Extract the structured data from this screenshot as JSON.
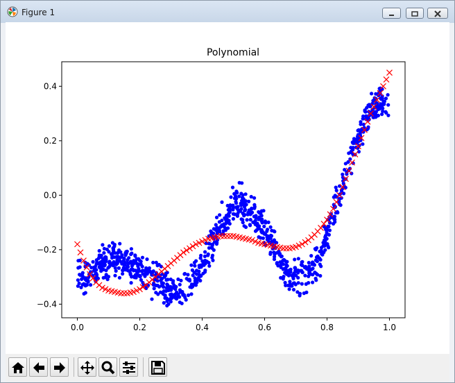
{
  "window": {
    "title": "Figure 1"
  },
  "toolbar": {
    "buttons": [
      {
        "name": "home",
        "icon": "home-icon"
      },
      {
        "name": "back",
        "icon": "arrow-left-icon"
      },
      {
        "name": "forward",
        "icon": "arrow-right-icon"
      },
      {
        "name": "pan",
        "icon": "move-arrows-icon"
      },
      {
        "name": "zoom",
        "icon": "magnifier-icon"
      },
      {
        "name": "configure-subplots",
        "icon": "sliders-icon"
      },
      {
        "name": "save",
        "icon": "floppy-disk-icon"
      }
    ]
  },
  "chart_data": {
    "type": "scatter",
    "title": "Polynomial",
    "xlabel": "",
    "ylabel": "",
    "xlim": [
      -0.05,
      1.05
    ],
    "ylim": [
      -0.45,
      0.49
    ],
    "xticks": [
      0.0,
      0.2,
      0.4,
      0.6,
      0.8,
      1.0
    ],
    "xtick_labels": [
      "0.0",
      "0.2",
      "0.4",
      "0.6",
      "0.8",
      "1.0"
    ],
    "yticks": [
      -0.4,
      -0.2,
      0.0,
      0.2,
      0.4
    ],
    "ytick_labels": [
      "−0.4",
      "−0.2",
      "0.0",
      "0.2",
      "0.4"
    ],
    "grid": false,
    "legend": "none",
    "series": [
      {
        "marker": "dot",
        "color": "#0000ff",
        "description_of_distribution": "noisy samples, about 1000 points, noise band ±0.05",
        "x": [
          0.0,
          0.02,
          0.04,
          0.06,
          0.08,
          0.1,
          0.12,
          0.14,
          0.16,
          0.18,
          0.2,
          0.22,
          0.24,
          0.26,
          0.28,
          0.3,
          0.32,
          0.34,
          0.36,
          0.38,
          0.4,
          0.42,
          0.44,
          0.46,
          0.48,
          0.5,
          0.52,
          0.54,
          0.56,
          0.58,
          0.6,
          0.62,
          0.64,
          0.66,
          0.68,
          0.7,
          0.72,
          0.74,
          0.76,
          0.78,
          0.8,
          0.82,
          0.84,
          0.86,
          0.88,
          0.9,
          0.92,
          0.94,
          0.96,
          0.98,
          1.0
        ],
        "y": [
          -0.28,
          -0.3,
          -0.3,
          -0.27,
          -0.25,
          -0.24,
          -0.23,
          -0.24,
          -0.25,
          -0.26,
          -0.28,
          -0.3,
          -0.31,
          -0.32,
          -0.34,
          -0.35,
          -0.36,
          -0.35,
          -0.33,
          -0.3,
          -0.26,
          -0.21,
          -0.16,
          -0.11,
          -0.07,
          -0.04,
          -0.03,
          -0.04,
          -0.07,
          -0.1,
          -0.13,
          -0.17,
          -0.22,
          -0.26,
          -0.29,
          -0.3,
          -0.3,
          -0.29,
          -0.26,
          -0.22,
          -0.15,
          -0.07,
          0.0,
          0.07,
          0.15,
          0.22,
          0.27,
          0.31,
          0.33,
          0.34,
          0.32
        ]
      },
      {
        "marker": "x",
        "color": "#ff0000",
        "x": [
          0.0,
          0.02,
          0.04,
          0.06,
          0.08,
          0.1,
          0.12,
          0.14,
          0.16,
          0.18,
          0.2,
          0.22,
          0.24,
          0.26,
          0.28,
          0.3,
          0.32,
          0.34,
          0.36,
          0.38,
          0.4,
          0.42,
          0.44,
          0.46,
          0.48,
          0.5,
          0.52,
          0.54,
          0.56,
          0.58,
          0.6,
          0.62,
          0.64,
          0.66,
          0.68,
          0.7,
          0.72,
          0.74,
          0.76,
          0.78,
          0.8,
          0.82,
          0.84,
          0.86,
          0.88,
          0.9,
          0.92,
          0.94,
          0.96,
          0.98,
          1.0
        ],
        "y": [
          -0.18,
          -0.24,
          -0.29,
          -0.32,
          -0.34,
          -0.35,
          -0.355,
          -0.36,
          -0.36,
          -0.355,
          -0.345,
          -0.33,
          -0.31,
          -0.29,
          -0.27,
          -0.25,
          -0.23,
          -0.21,
          -0.195,
          -0.18,
          -0.17,
          -0.16,
          -0.155,
          -0.15,
          -0.15,
          -0.15,
          -0.155,
          -0.16,
          -0.165,
          -0.175,
          -0.18,
          -0.185,
          -0.19,
          -0.195,
          -0.195,
          -0.19,
          -0.18,
          -0.165,
          -0.145,
          -0.12,
          -0.09,
          -0.05,
          0.0,
          0.06,
          0.12,
          0.18,
          0.24,
          0.3,
          0.35,
          0.4,
          0.45
        ]
      }
    ]
  }
}
